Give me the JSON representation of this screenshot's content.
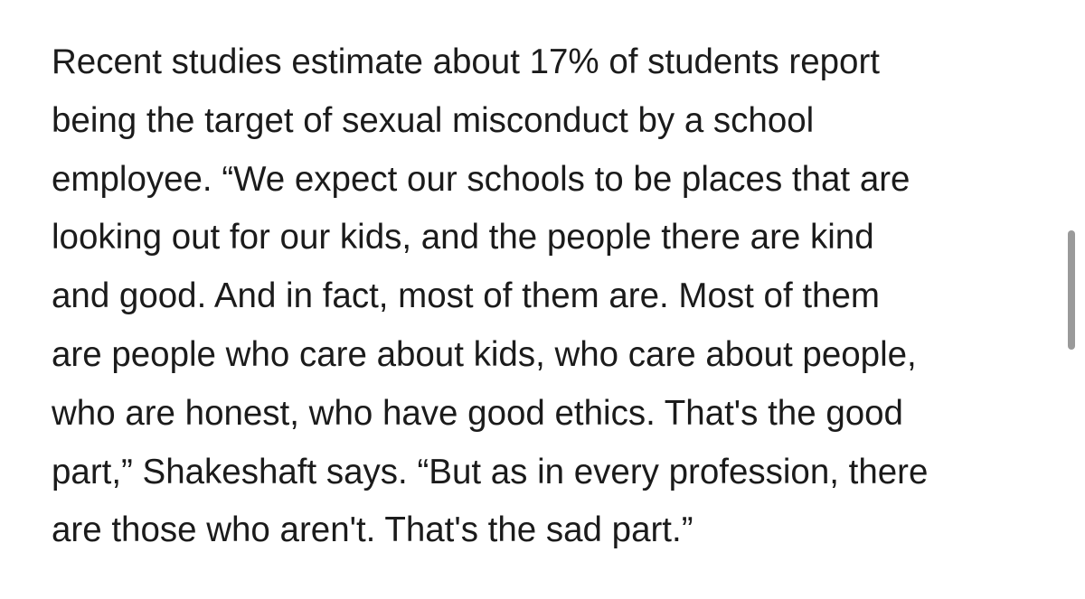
{
  "paragraph": {
    "lines": [
      "Recent studies estimate about 17% of students report",
      "being the target of sexual misconduct by a school",
      "employee. “We expect our schools to be places that are",
      "looking out for our kids, and the people there are kind",
      "and good. And in fact, most of them are. Most of them",
      "are people who care about kids, who care about people,",
      "who are honest, who have good ethics. That's the good",
      "part,” Shakeshaft says. “But as in every profession, there",
      "are those who aren't. That's the sad part.”"
    ]
  }
}
